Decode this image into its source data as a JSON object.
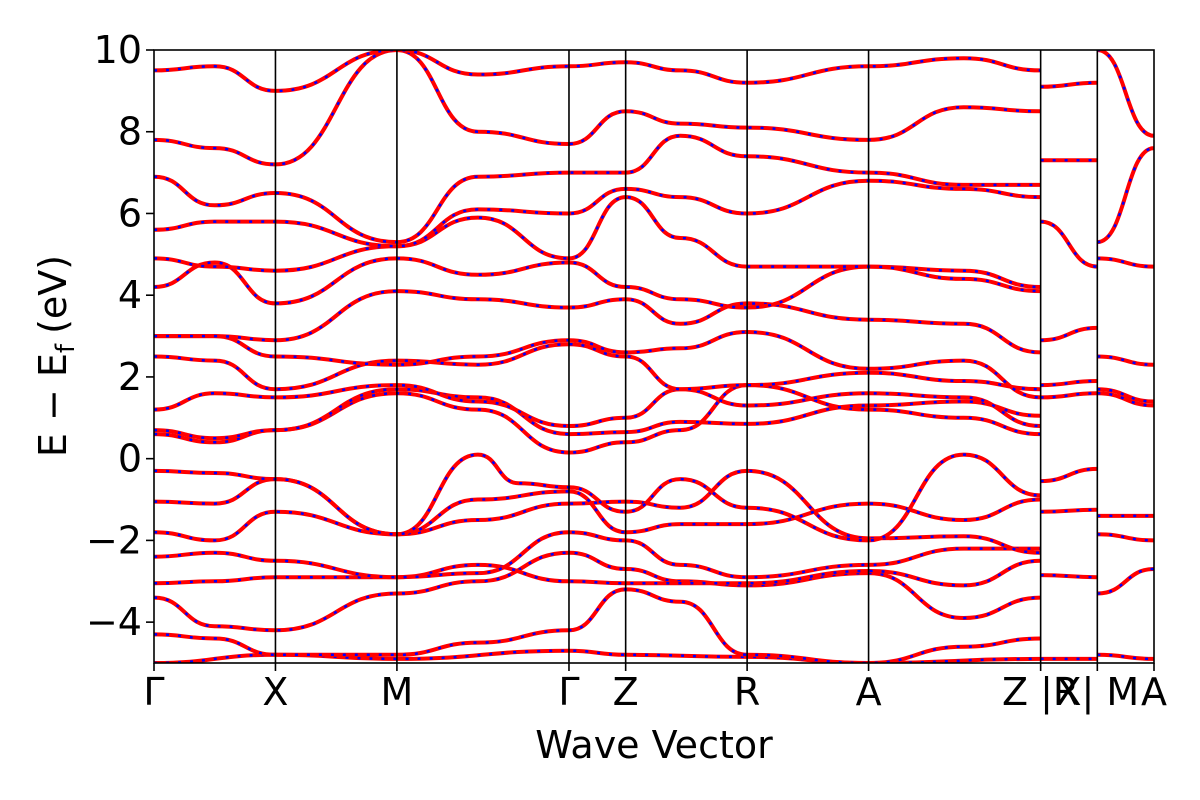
{
  "chart_data": {
    "type": "line",
    "title": "",
    "xlabel": "Wave Vector",
    "ylabel": "E − E",
    "ylabel_subscript": "f",
    "ylabel_unit": "(eV)",
    "ylim": [
      -5,
      10
    ],
    "yticks": [
      "−4",
      "−2",
      "0",
      "2",
      "4",
      "6",
      "8",
      "10"
    ],
    "ytick_values": [
      -4,
      -2,
      0,
      2,
      4,
      6,
      8,
      10
    ],
    "xlim": [
      0,
      2.47
    ],
    "kpoint_labels": [
      "Γ",
      "X",
      "M",
      "Γ",
      "Z",
      "R",
      "A",
      "Z |R",
      "X| M",
      "A"
    ],
    "kpoint_positions": [
      0,
      0.3,
      0.6,
      1.025,
      1.165,
      1.465,
      1.765,
      2.19,
      2.33,
      2.47
    ],
    "series_colors": {
      "reference": "#ff0000",
      "overlay": "#0000ff"
    },
    "bands": [
      {
        "x": [
          0,
          0.3,
          0.6,
          1.025,
          1.165,
          1.465,
          1.765,
          2.19,
          2.19,
          2.33,
          2.33,
          2.47
        ],
        "y": [
          -5.0,
          -4.8,
          -4.9,
          -4.7,
          -4.8,
          -4.85,
          -5.0,
          -4.9,
          -4.9,
          -4.9,
          -4.8,
          -4.9
        ]
      },
      {
        "x": [
          0,
          0.15,
          0.3,
          0.6,
          0.8,
          1.025,
          1.165,
          1.3,
          1.465,
          1.765,
          2.0,
          2.19
        ],
        "y": [
          -4.3,
          -4.4,
          -4.8,
          -4.8,
          -4.5,
          -4.2,
          -3.2,
          -3.5,
          -4.8,
          -5.0,
          -4.6,
          -4.4
        ]
      },
      {
        "x": [
          0,
          0.15,
          0.3,
          0.6,
          0.8,
          1.025,
          1.165,
          1.3,
          1.465,
          1.765,
          2.0,
          2.19
        ],
        "y": [
          -3.4,
          -4.1,
          -4.2,
          -3.3,
          -3.0,
          -2.3,
          -2.7,
          -3.0,
          -3.1,
          -2.8,
          -3.9,
          -3.4
        ]
      },
      {
        "x": [
          0,
          0.15,
          0.3,
          0.6,
          0.8,
          1.025,
          1.165,
          1.3,
          1.465,
          1.765,
          2.0,
          2.19,
          2.19,
          2.33,
          2.33,
          2.47
        ],
        "y": [
          -3.05,
          -3.0,
          -2.9,
          -2.9,
          -2.6,
          -3.0,
          -3.05,
          -3.05,
          -3.05,
          -2.75,
          -3.1,
          -2.5,
          -2.85,
          -2.9,
          -3.3,
          -2.7
        ]
      },
      {
        "x": [
          0,
          0.15,
          0.3,
          0.6,
          0.8,
          1.025,
          1.165,
          1.3,
          1.465,
          1.765,
          2.0,
          2.19
        ],
        "y": [
          -2.4,
          -2.3,
          -2.5,
          -2.9,
          -2.8,
          -1.8,
          -2.0,
          -2.6,
          -2.9,
          -2.6,
          -2.2,
          -2.2
        ]
      },
      {
        "x": [
          0,
          0.15,
          0.3,
          0.6,
          0.8,
          1.025,
          1.165,
          1.3,
          1.465,
          1.765,
          2.0,
          2.19,
          2.19,
          2.33,
          2.33,
          2.47
        ],
        "y": [
          -1.8,
          -2.0,
          -1.3,
          -1.85,
          -1.5,
          -1.1,
          -1.05,
          -1.2,
          -0.3,
          -1.95,
          -1.9,
          -2.3,
          -1.3,
          -1.25,
          -1.85,
          -2.0
        ]
      },
      {
        "x": [
          0,
          0.15,
          0.3,
          0.6,
          0.8,
          1.025,
          1.165,
          1.3,
          1.465,
          1.765,
          2.0,
          2.19
        ],
        "y": [
          -1.05,
          -1.1,
          -0.5,
          -1.85,
          -1.0,
          -0.8,
          -1.8,
          -1.6,
          -1.6,
          -1.1,
          -1.5,
          -1.0
        ]
      },
      {
        "x": [
          0,
          0.15,
          0.3,
          0.6,
          0.8,
          0.9,
          1.025,
          1.165,
          1.3,
          1.465,
          1.765,
          2.0,
          2.19,
          2.19,
          2.33,
          2.33,
          2.47
        ],
        "y": [
          -0.3,
          -0.35,
          -0.5,
          -1.85,
          0.1,
          -0.6,
          -0.7,
          -1.3,
          -0.5,
          -1.2,
          -2.0,
          0.1,
          -0.9,
          -0.55,
          -0.25,
          -1.4,
          -1.4
        ]
      },
      {
        "x": [
          0,
          0.15,
          0.3,
          0.6,
          0.8,
          1.025,
          1.165,
          1.3,
          1.465,
          1.765,
          2.0,
          2.19
        ],
        "y": [
          0.6,
          0.4,
          0.7,
          1.6,
          1.2,
          0.15,
          0.4,
          0.7,
          1.8,
          1.2,
          1.0,
          0.6
        ]
      },
      {
        "x": [
          0,
          0.15,
          0.3,
          0.6,
          0.8,
          1.025,
          1.165,
          1.3,
          1.465,
          1.765,
          2.0,
          2.19,
          2.19,
          2.33,
          2.33,
          2.47
        ],
        "y": [
          0.7,
          0.5,
          0.7,
          1.7,
          1.5,
          0.6,
          0.65,
          0.9,
          0.85,
          1.3,
          1.4,
          1.05,
          1.5,
          1.6,
          1.6,
          1.3
        ]
      },
      {
        "x": [
          0,
          0.15,
          0.3,
          0.6,
          0.8,
          1.025,
          1.165,
          1.3,
          1.465,
          1.765,
          2.0,
          2.19
        ],
        "y": [
          1.2,
          1.6,
          1.5,
          1.8,
          1.4,
          0.8,
          1.0,
          1.7,
          1.3,
          1.6,
          1.5,
          0.8
        ]
      },
      {
        "x": [
          0,
          0.15,
          0.3,
          0.6,
          0.8,
          1.025,
          1.165,
          1.3,
          1.465,
          1.765,
          2.0,
          2.19,
          2.19,
          2.33,
          2.33,
          2.47
        ],
        "y": [
          2.5,
          2.4,
          1.7,
          2.4,
          2.3,
          2.8,
          2.5,
          1.7,
          1.8,
          2.1,
          1.9,
          1.7,
          1.8,
          1.9,
          1.7,
          1.4
        ]
      },
      {
        "x": [
          0,
          0.15,
          0.3,
          0.6,
          0.8,
          1.025,
          1.165,
          1.3,
          1.465,
          1.765,
          2.0,
          2.19
        ],
        "y": [
          3.0,
          3.0,
          2.5,
          2.3,
          2.5,
          2.9,
          2.6,
          2.7,
          3.1,
          2.2,
          2.4,
          1.5
        ]
      },
      {
        "x": [
          0,
          0.15,
          0.3,
          0.6,
          0.8,
          1.025,
          1.165,
          1.3,
          1.465,
          1.765,
          2.0,
          2.19,
          2.19,
          2.33,
          2.33,
          2.47
        ],
        "y": [
          3.0,
          3.0,
          2.9,
          4.1,
          3.9,
          3.7,
          3.9,
          3.3,
          3.8,
          3.4,
          3.3,
          2.6,
          2.9,
          3.2,
          2.5,
          2.3
        ]
      },
      {
        "x": [
          0,
          0.15,
          0.3,
          0.6,
          0.8,
          1.025,
          1.165,
          1.3,
          1.465,
          1.765,
          2.0,
          2.19
        ],
        "y": [
          4.2,
          4.8,
          3.8,
          4.9,
          4.5,
          4.8,
          4.2,
          3.9,
          3.7,
          4.7,
          4.6,
          4.2
        ]
      },
      {
        "x": [
          0,
          0.15,
          0.3,
          0.6,
          0.8,
          1.025,
          1.165,
          1.3,
          1.465,
          1.765,
          2.0,
          2.19,
          2.19,
          2.33,
          2.33,
          2.47
        ],
        "y": [
          4.9,
          4.7,
          4.6,
          5.2,
          5.9,
          4.9,
          6.4,
          5.4,
          4.7,
          4.7,
          4.4,
          4.1,
          5.8,
          4.7,
          4.9,
          4.7
        ]
      },
      {
        "x": [
          0,
          0.15,
          0.3,
          0.6,
          0.8,
          1.025,
          1.165,
          1.3,
          1.465,
          1.765,
          2.0,
          2.19
        ],
        "y": [
          5.6,
          5.8,
          5.8,
          5.2,
          6.1,
          6.0,
          6.6,
          6.4,
          6.0,
          6.8,
          6.6,
          6.4
        ]
      },
      {
        "x": [
          0,
          0.15,
          0.3,
          0.6,
          0.8,
          1.025,
          1.165,
          1.3,
          1.465,
          1.765,
          2.0,
          2.19,
          2.19,
          2.33,
          2.33,
          2.47
        ],
        "y": [
          6.9,
          6.2,
          6.5,
          5.3,
          6.9,
          7.0,
          7.0,
          7.9,
          7.4,
          7.0,
          6.7,
          6.7,
          7.3,
          7.3,
          5.3,
          7.6
        ]
      },
      {
        "x": [
          0,
          0.15,
          0.3,
          0.6,
          0.8,
          1.025,
          1.165,
          1.3,
          1.465,
          1.765,
          2.0,
          2.19
        ],
        "y": [
          7.8,
          7.6,
          7.2,
          10.0,
          8.0,
          7.7,
          8.5,
          8.2,
          8.1,
          7.8,
          8.6,
          8.5
        ]
      },
      {
        "x": [
          0,
          0.15,
          0.3,
          0.6,
          0.8,
          1.025,
          1.165,
          1.3,
          1.465,
          1.765,
          2.0,
          2.19,
          2.19,
          2.33,
          2.33,
          2.47
        ],
        "y": [
          9.5,
          9.6,
          9.0,
          10.0,
          9.4,
          9.6,
          9.7,
          9.5,
          9.2,
          9.6,
          9.8,
          9.5,
          9.1,
          9.2,
          10.0,
          7.9
        ]
      }
    ]
  }
}
